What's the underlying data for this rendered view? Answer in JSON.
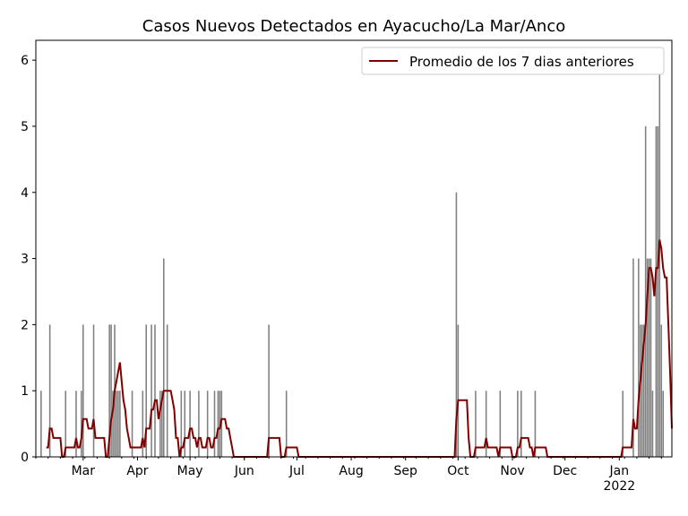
{
  "chart_data": {
    "type": "bar",
    "title": "Casos Nuevos Detectados en Ayacucho/La Mar/Anco",
    "xlabel": "",
    "ylabel": "",
    "x_start_date": "2021-02-02",
    "x_unit": "days since x_start_date",
    "xlim": [
      0,
      363
    ],
    "ylim": [
      0,
      6.3
    ],
    "yticks": [
      0,
      1,
      2,
      3,
      4,
      5,
      6
    ],
    "xticks": [
      {
        "day": 27,
        "label": "Mar"
      },
      {
        "day": 58,
        "label": "Apr"
      },
      {
        "day": 88,
        "label": "May"
      },
      {
        "day": 119,
        "label": "Jun"
      },
      {
        "day": 149,
        "label": "Jul"
      },
      {
        "day": 180,
        "label": "Aug"
      },
      {
        "day": 211,
        "label": "Sep"
      },
      {
        "day": 241,
        "label": "Oct"
      },
      {
        "day": 272,
        "label": "Nov"
      },
      {
        "day": 302,
        "label": "Dec"
      },
      {
        "day": 333,
        "label": "Jan",
        "sublabel": "2022"
      }
    ],
    "bar_color": "#808080",
    "bars": [
      [
        3,
        1
      ],
      [
        8,
        2
      ],
      [
        17,
        1
      ],
      [
        23,
        1
      ],
      [
        26,
        1
      ],
      [
        27,
        2
      ],
      [
        33,
        2
      ],
      [
        42,
        2
      ],
      [
        43,
        2
      ],
      [
        44,
        1
      ],
      [
        45,
        2
      ],
      [
        46,
        1
      ],
      [
        47,
        1
      ],
      [
        48,
        1
      ],
      [
        55,
        1
      ],
      [
        61,
        1
      ],
      [
        63,
        2
      ],
      [
        66,
        2
      ],
      [
        68,
        2
      ],
      [
        71,
        1
      ],
      [
        72,
        1
      ],
      [
        73,
        3
      ],
      [
        75,
        2
      ],
      [
        83,
        1
      ],
      [
        85,
        1
      ],
      [
        88,
        1
      ],
      [
        93,
        1
      ],
      [
        98,
        1
      ],
      [
        102,
        1
      ],
      [
        104,
        1
      ],
      [
        105,
        1
      ],
      [
        106,
        1
      ],
      [
        133,
        2
      ],
      [
        143,
        1
      ],
      [
        240,
        4
      ],
      [
        241,
        2
      ],
      [
        251,
        1
      ],
      [
        257,
        1
      ],
      [
        265,
        1
      ],
      [
        275,
        1
      ],
      [
        277,
        1
      ],
      [
        285,
        1
      ],
      [
        335,
        1
      ],
      [
        341,
        3
      ],
      [
        344,
        3
      ],
      [
        345,
        2
      ],
      [
        346,
        2
      ],
      [
        347,
        2
      ],
      [
        348,
        5
      ],
      [
        349,
        3
      ],
      [
        350,
        3
      ],
      [
        351,
        3
      ],
      [
        352,
        1
      ],
      [
        354,
        5
      ],
      [
        355,
        5
      ],
      [
        356,
        6
      ],
      [
        357,
        2
      ],
      [
        358,
        1
      ]
    ],
    "series": [
      {
        "name": "Promedio de los 7 dias anteriores",
        "type": "line",
        "window": 7,
        "color": "#800000"
      }
    ],
    "legend_position": "top-right",
    "grid": false
  }
}
